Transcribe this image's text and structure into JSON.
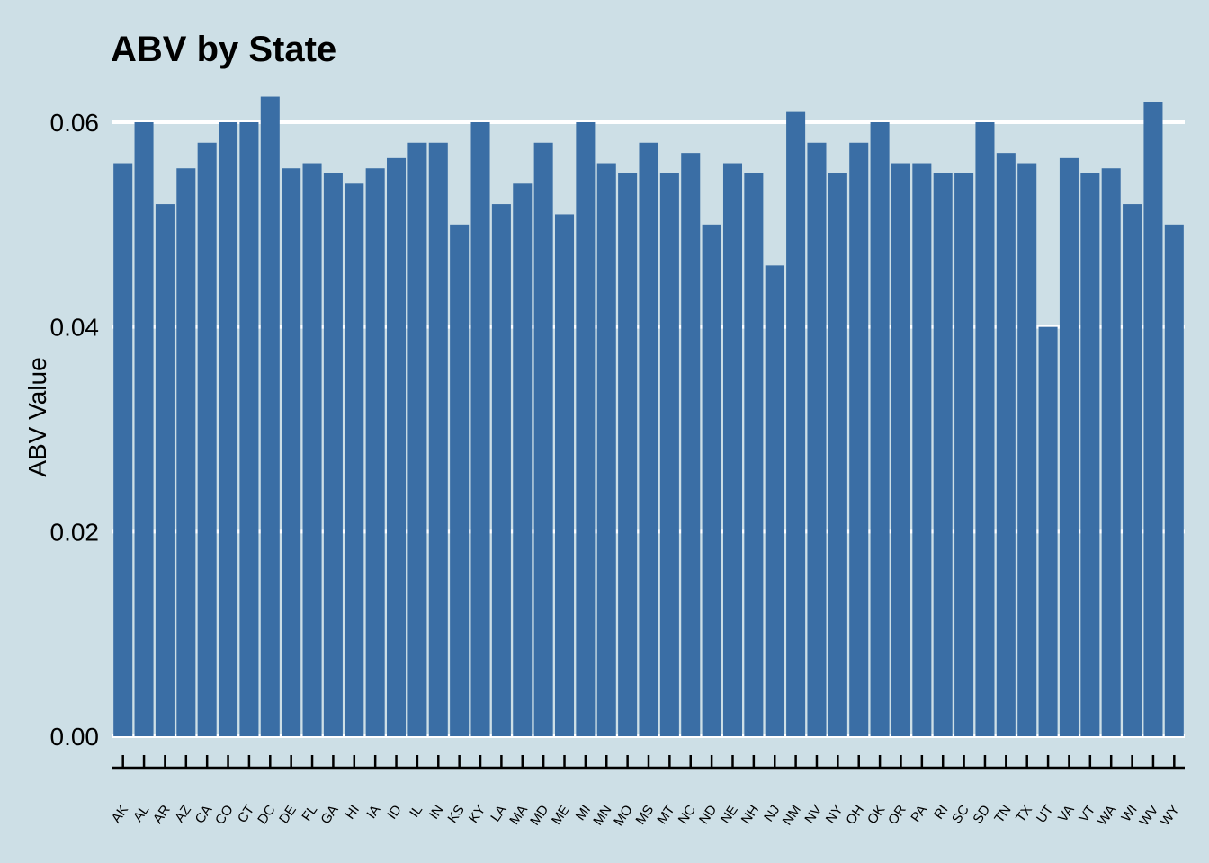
{
  "chart_data": {
    "type": "bar",
    "title": "ABV by State",
    "xlabel": "",
    "ylabel": "ABV Value",
    "ylim": [
      0,
      0.0635
    ],
    "yticks": [
      "0.00",
      "0.02",
      "0.04",
      "0.06"
    ],
    "ytick_values": [
      0,
      0.02,
      0.04,
      0.06
    ],
    "grid": true,
    "legend": "none",
    "categories": [
      "AK",
      "AL",
      "AR",
      "AZ",
      "CA",
      "CO",
      "CT",
      "DC",
      "DE",
      "FL",
      "GA",
      "HI",
      "IA",
      "ID",
      "IL",
      "IN",
      "KS",
      "KY",
      "LA",
      "MA",
      "MD",
      "ME",
      "MI",
      "MN",
      "MO",
      "MS",
      "MT",
      "NC",
      "ND",
      "NE",
      "NH",
      "NJ",
      "NM",
      "NV",
      "NY",
      "OH",
      "OK",
      "OR",
      "PA",
      "RI",
      "SC",
      "SD",
      "TN",
      "TX",
      "UT",
      "VA",
      "VT",
      "WA",
      "WI",
      "WV",
      "WY"
    ],
    "values": [
      0.056,
      0.06,
      0.052,
      0.0555,
      0.058,
      0.06,
      0.06,
      0.0625,
      0.0555,
      0.056,
      0.055,
      0.054,
      0.0555,
      0.0565,
      0.058,
      0.058,
      0.05,
      0.06,
      0.052,
      0.054,
      0.058,
      0.051,
      0.06,
      0.056,
      0.055,
      0.058,
      0.055,
      0.057,
      0.05,
      0.056,
      0.055,
      0.046,
      0.061,
      0.058,
      0.055,
      0.058,
      0.06,
      0.056,
      0.056,
      0.055,
      0.055,
      0.06,
      0.057,
      0.056,
      0.04,
      0.0565,
      0.055,
      0.0555,
      0.052,
      0.062,
      0.05
    ]
  },
  "colors": {
    "background": "#cddfe6",
    "bar": "#3a6ea5",
    "gridline": "#ffffff",
    "axis": "#000000"
  }
}
